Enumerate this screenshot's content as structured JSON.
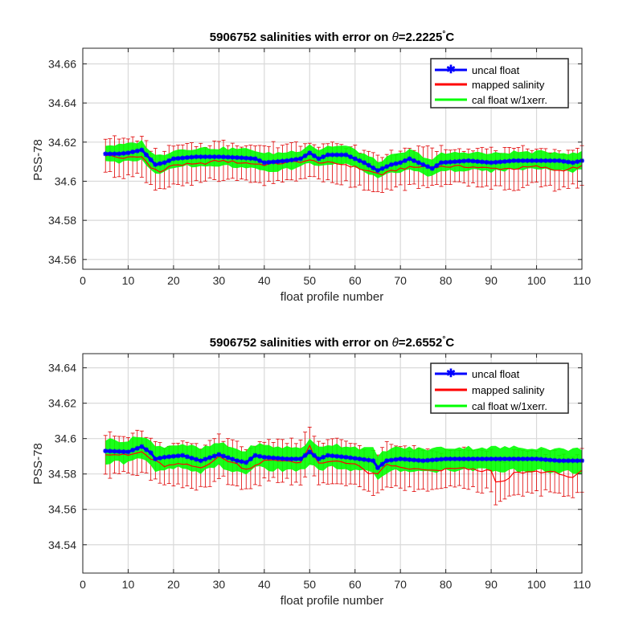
{
  "chart_data": [
    {
      "type": "line",
      "title": "5906752 salinities with error on θ=2.2225°C",
      "title_prefix": "5906752 salinities with error on ",
      "title_theta": "θ",
      "title_value": "=2.2225",
      "title_deg": "°",
      "title_unit": "C",
      "xlabel": "float profile number",
      "ylabel": "PSS-78",
      "xlim": [
        0,
        110
      ],
      "ylim": [
        34.555,
        34.668
      ],
      "xticks": [
        0,
        10,
        20,
        30,
        40,
        50,
        60,
        70,
        80,
        90,
        100,
        110
      ],
      "yticks": [
        34.56,
        34.58,
        34.6,
        34.62,
        34.64,
        34.66
      ],
      "ytick_labels": [
        "34.56",
        "34.58",
        "34.6",
        "34.62",
        "34.64",
        "34.66"
      ],
      "grid": true,
      "legend_position": "top-right",
      "legend": [
        "uncal float",
        "mapped salinity",
        "cal float w/1xerr."
      ],
      "colors": {
        "uncal": "#0000ff",
        "mapped": "#ff0000",
        "cal": "#00ff00"
      },
      "x_start": 5,
      "x_end": 110,
      "error_half_width": 0.0095,
      "cal_half_width": 0.0045,
      "series": [
        {
          "name": "uncal float",
          "anchors": [
            [
              5,
              34.614
            ],
            [
              8,
              34.614
            ],
            [
              10,
              34.6145
            ],
            [
              13,
              34.616
            ],
            [
              15,
              34.611
            ],
            [
              16,
              34.6085
            ],
            [
              18,
              34.6095
            ],
            [
              20,
              34.6115
            ],
            [
              25,
              34.6125
            ],
            [
              30,
              34.6125
            ],
            [
              35,
              34.612
            ],
            [
              38,
              34.6115
            ],
            [
              40,
              34.6095
            ],
            [
              45,
              34.6105
            ],
            [
              48,
              34.6115
            ],
            [
              50,
              34.6145
            ],
            [
              52,
              34.6115
            ],
            [
              54,
              34.6135
            ],
            [
              58,
              34.6135
            ],
            [
              60,
              34.6115
            ],
            [
              62,
              34.6095
            ],
            [
              65,
              34.6055
            ],
            [
              66,
              34.6065
            ],
            [
              68,
              34.6085
            ],
            [
              70,
              34.6095
            ],
            [
              72,
              34.6115
            ],
            [
              74,
              34.6095
            ],
            [
              77,
              34.6065
            ],
            [
              79,
              34.6095
            ],
            [
              85,
              34.6105
            ],
            [
              90,
              34.6095
            ],
            [
              95,
              34.6105
            ],
            [
              100,
              34.6105
            ],
            [
              105,
              34.6105
            ],
            [
              108,
              34.6095
            ],
            [
              110,
              34.6105
            ]
          ]
        },
        {
          "name": "mapped salinity",
          "anchors": [
            [
              5,
              34.6135
            ],
            [
              8,
              34.612
            ],
            [
              10,
              34.612
            ],
            [
              13,
              34.6125
            ],
            [
              15,
              34.6075
            ],
            [
              17,
              34.6045
            ],
            [
              20,
              34.6085
            ],
            [
              25,
              34.6085
            ],
            [
              30,
              34.6105
            ],
            [
              35,
              34.6095
            ],
            [
              40,
              34.6085
            ],
            [
              45,
              34.6095
            ],
            [
              50,
              34.6105
            ],
            [
              53,
              34.6095
            ],
            [
              58,
              34.6085
            ],
            [
              61,
              34.6065
            ],
            [
              64,
              34.6045
            ],
            [
              66,
              34.6035
            ],
            [
              70,
              34.6065
            ],
            [
              75,
              34.6075
            ],
            [
              80,
              34.6075
            ],
            [
              85,
              34.6075
            ],
            [
              90,
              34.6065
            ],
            [
              95,
              34.6065
            ],
            [
              100,
              34.6075
            ],
            [
              105,
              34.6055
            ],
            [
              110,
              34.6075
            ]
          ]
        }
      ]
    },
    {
      "type": "line",
      "title": "5906752 salinities with error on θ=2.6552°C",
      "title_prefix": "5906752 salinities with error on ",
      "title_theta": "θ",
      "title_value": "=2.6552",
      "title_deg": "°",
      "title_unit": "C",
      "xlabel": "float profile number",
      "ylabel": "PSS-78",
      "xlim": [
        0,
        110
      ],
      "ylim": [
        34.524,
        34.648
      ],
      "xticks": [
        0,
        10,
        20,
        30,
        40,
        50,
        60,
        70,
        80,
        90,
        100,
        110
      ],
      "yticks": [
        34.54,
        34.56,
        34.58,
        34.6,
        34.62,
        34.64
      ],
      "ytick_labels": [
        "34.54",
        "34.56",
        "34.58",
        "34.6",
        "34.62",
        "34.64"
      ],
      "grid": true,
      "legend_position": "top-right",
      "legend": [
        "uncal float",
        "mapped salinity",
        "cal float w/1xerr."
      ],
      "colors": {
        "uncal": "#0000ff",
        "mapped": "#ff0000",
        "cal": "#00ff00"
      },
      "x_start": 5,
      "x_end": 110,
      "error_half_width": 0.0115,
      "cal_half_width": 0.0065,
      "series": [
        {
          "name": "uncal float",
          "anchors": [
            [
              5,
              34.593
            ],
            [
              10,
              34.5925
            ],
            [
              13,
              34.5955
            ],
            [
              15,
              34.592
            ],
            [
              16,
              34.5885
            ],
            [
              18,
              34.5895
            ],
            [
              22,
              34.5905
            ],
            [
              26,
              34.5875
            ],
            [
              30,
              34.591
            ],
            [
              34,
              34.5875
            ],
            [
              36,
              34.5865
            ],
            [
              38,
              34.5905
            ],
            [
              40,
              34.5895
            ],
            [
              45,
              34.5885
            ],
            [
              48,
              34.5885
            ],
            [
              50,
              34.5925
            ],
            [
              52,
              34.5885
            ],
            [
              54,
              34.5905
            ],
            [
              58,
              34.5895
            ],
            [
              61,
              34.5885
            ],
            [
              64,
              34.5875
            ],
            [
              65,
              34.5835
            ],
            [
              67,
              34.5875
            ],
            [
              70,
              34.5885
            ],
            [
              75,
              34.5875
            ],
            [
              80,
              34.5885
            ],
            [
              85,
              34.5885
            ],
            [
              90,
              34.5885
            ],
            [
              95,
              34.5885
            ],
            [
              100,
              34.5885
            ],
            [
              105,
              34.5875
            ],
            [
              110,
              34.5875
            ]
          ]
        },
        {
          "name": "mapped salinity",
          "anchors": [
            [
              5,
              34.5915
            ],
            [
              10,
              34.5905
            ],
            [
              13,
              34.5925
            ],
            [
              15,
              34.5885
            ],
            [
              18,
              34.5845
            ],
            [
              22,
              34.5855
            ],
            [
              26,
              34.5835
            ],
            [
              30,
              34.5895
            ],
            [
              34,
              34.5855
            ],
            [
              36,
              34.5825
            ],
            [
              40,
              34.5875
            ],
            [
              45,
              34.5875
            ],
            [
              48,
              34.5865
            ],
            [
              50,
              34.5955
            ],
            [
              52,
              34.5855
            ],
            [
              56,
              34.5875
            ],
            [
              60,
              34.5855
            ],
            [
              63,
              34.5805
            ],
            [
              65,
              34.5795
            ],
            [
              67,
              34.5855
            ],
            [
              70,
              34.5835
            ],
            [
              74,
              34.5825
            ],
            [
              78,
              34.5815
            ],
            [
              82,
              34.5835
            ],
            [
              86,
              34.5825
            ],
            [
              90,
              34.5815
            ],
            [
              91,
              34.5755
            ],
            [
              93,
              34.5755
            ],
            [
              95,
              34.5805
            ],
            [
              100,
              34.5815
            ],
            [
              105,
              34.5805
            ],
            [
              108,
              34.5775
            ],
            [
              110,
              34.5815
            ]
          ]
        }
      ]
    }
  ]
}
